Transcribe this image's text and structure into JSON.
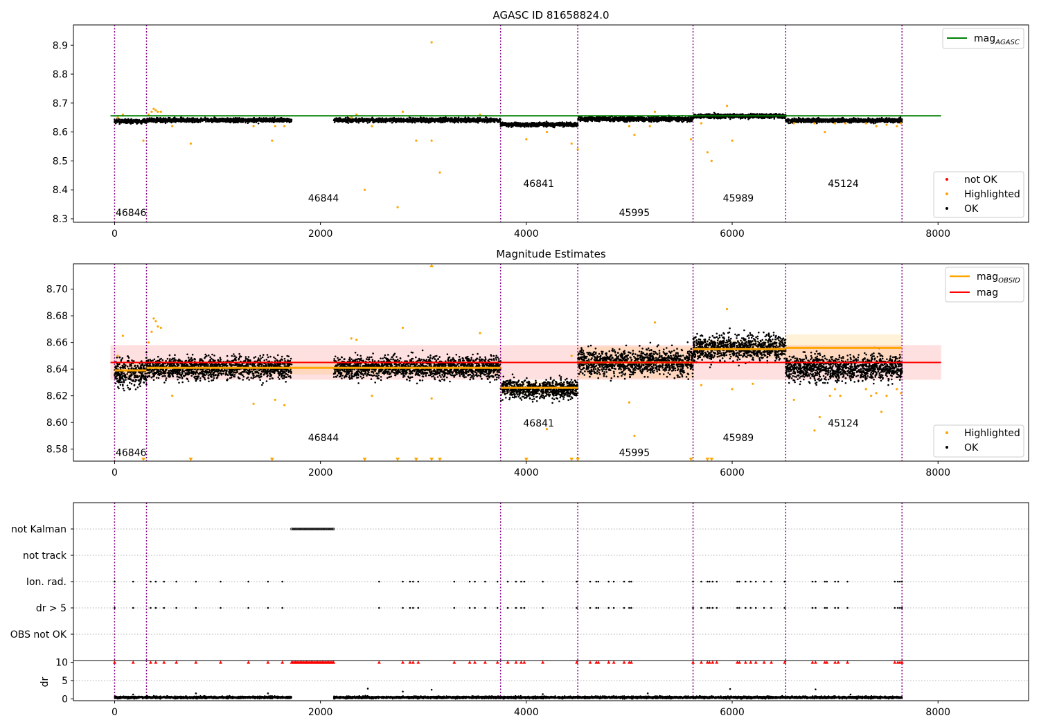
{
  "chart_data": [
    {
      "type": "scatter",
      "title": "AGASC ID 81658824.0",
      "xlim": [
        -400,
        8880
      ],
      "ylim": [
        8.288,
        8.97
      ],
      "xticks": [
        0,
        2000,
        4000,
        6000,
        8000
      ],
      "yticks": [
        8.3,
        8.4,
        8.5,
        8.6,
        8.7,
        8.8,
        8.9
      ],
      "grid": false,
      "obs_boundaries": [
        0,
        310,
        3750,
        4500,
        5620,
        6520,
        7650
      ],
      "obs_labels": [
        {
          "text": "46846",
          "x": 10,
          "y": 8.31
        },
        {
          "text": "46844",
          "x": 1880,
          "y": 8.36
        },
        {
          "text": "46841",
          "x": 3970,
          "y": 8.41
        },
        {
          "text": "45995",
          "x": 4900,
          "y": 8.31
        },
        {
          "text": "45989",
          "x": 5910,
          "y": 8.36
        },
        {
          "text": "45124",
          "x": 6930,
          "y": 8.41
        }
      ],
      "mag_agasc": {
        "name": "mag",
        "sub": "AGASC",
        "value": 8.656,
        "xrange": [
          -40,
          8030
        ],
        "color": "#008000"
      },
      "legend_upper": {
        "placement": "upper right",
        "entries": [
          {
            "label": "mag",
            "sub": "AGASC",
            "color": "#008000"
          }
        ]
      },
      "legend_lower": {
        "placement": "lower right",
        "entries": [
          {
            "label": "not OK",
            "color": "#ff0000"
          },
          {
            "label": "Highlighted",
            "color": "#ffa500"
          },
          {
            "label": "OK",
            "color": "#000000"
          }
        ]
      },
      "ok_segments": [
        {
          "x": [
            0,
            310
          ],
          "mean": 8.637,
          "sd": 0.006
        },
        {
          "x": [
            310,
            1720
          ],
          "mean": 8.641,
          "sd": 0.006
        },
        {
          "x": [
            2130,
            3750
          ],
          "mean": 8.641,
          "sd": 0.006
        },
        {
          "x": [
            3750,
            4500
          ],
          "mean": 8.626,
          "sd": 0.006
        },
        {
          "x": [
            4500,
            5620
          ],
          "mean": 8.645,
          "sd": 0.007
        },
        {
          "x": [
            5620,
            6520
          ],
          "mean": 8.655,
          "sd": 0.006
        },
        {
          "x": [
            6520,
            7650
          ],
          "mean": 8.64,
          "sd": 0.006
        }
      ],
      "highlighted": [
        [
          30,
          8.65
        ],
        [
          80,
          8.66
        ],
        [
          280,
          8.57
        ],
        [
          330,
          8.66
        ],
        [
          360,
          8.67
        ],
        [
          380,
          8.68
        ],
        [
          400,
          8.675
        ],
        [
          420,
          8.67
        ],
        [
          450,
          8.67
        ],
        [
          560,
          8.62
        ],
        [
          740,
          8.56
        ],
        [
          1350,
          8.62
        ],
        [
          1530,
          8.57
        ],
        [
          1560,
          8.62
        ],
        [
          1650,
          8.62
        ],
        [
          2300,
          8.65
        ],
        [
          2350,
          8.66
        ],
        [
          2430,
          8.4
        ],
        [
          2500,
          8.62
        ],
        [
          2750,
          8.34
        ],
        [
          2800,
          8.67
        ],
        [
          2930,
          8.57
        ],
        [
          3080,
          8.57
        ],
        [
          3080,
          8.91
        ],
        [
          3160,
          8.46
        ],
        [
          3550,
          8.66
        ],
        [
          4000,
          8.575
        ],
        [
          4200,
          8.6
        ],
        [
          4440,
          8.56
        ],
        [
          4500,
          8.54
        ],
        [
          5000,
          8.62
        ],
        [
          5050,
          8.59
        ],
        [
          5200,
          8.62
        ],
        [
          5250,
          8.67
        ],
        [
          5600,
          8.575
        ],
        [
          5700,
          8.63
        ],
        [
          5760,
          8.53
        ],
        [
          5800,
          8.5
        ],
        [
          5950,
          8.69
        ],
        [
          6000,
          8.57
        ],
        [
          6600,
          8.63
        ],
        [
          6800,
          8.63
        ],
        [
          6900,
          8.6
        ],
        [
          7000,
          8.63
        ],
        [
          7100,
          8.63
        ],
        [
          7300,
          8.63
        ],
        [
          7400,
          8.62
        ],
        [
          7500,
          8.625
        ],
        [
          7600,
          8.62
        ],
        [
          7640,
          8.63
        ]
      ]
    },
    {
      "type": "scatter",
      "title": "Magnitude Estimates",
      "xlim": [
        -400,
        8880
      ],
      "ylim": [
        8.571,
        8.719
      ],
      "xticks": [
        0,
        2000,
        4000,
        6000,
        8000
      ],
      "yticks": [
        8.58,
        8.6,
        8.62,
        8.64,
        8.66,
        8.68,
        8.7
      ],
      "grid": false,
      "obs_boundaries": [
        0,
        310,
        3750,
        4500,
        5620,
        6520,
        7650
      ],
      "obs_labels": [
        {
          "text": "46846",
          "x": 10,
          "y": 8.575
        },
        {
          "text": "46844",
          "x": 1880,
          "y": 8.586
        },
        {
          "text": "46841",
          "x": 3970,
          "y": 8.597
        },
        {
          "text": "45995",
          "x": 4900,
          "y": 8.575
        },
        {
          "text": "45989",
          "x": 5910,
          "y": 8.586
        },
        {
          "text": "45124",
          "x": 6930,
          "y": 8.597
        }
      ],
      "mag": {
        "name": "mag",
        "value": 8.645,
        "band": [
          8.632,
          8.658
        ],
        "xrange": [
          -40,
          8030
        ],
        "color": "#ff0000"
      },
      "mag_obsid": {
        "name": "mag",
        "sub": "OBSID",
        "color": "#ffa500",
        "segments": [
          {
            "x": [
              0,
              310
            ],
            "value": 8.639,
            "band": [
              8.634,
              8.644
            ]
          },
          {
            "x": [
              310,
              3750
            ],
            "value": 8.641,
            "band": [
              8.636,
              8.646
            ]
          },
          {
            "x": [
              3750,
              4500
            ],
            "value": 8.626,
            "band": [
              8.621,
              8.631
            ]
          },
          {
            "x": [
              4500,
              5620
            ],
            "value": 8.645,
            "band": [
              8.633,
              8.657
            ]
          },
          {
            "x": [
              5620,
              6520
            ],
            "value": 8.655,
            "band": [
              8.648,
              8.662
            ]
          },
          {
            "x": [
              6520,
              7650
            ],
            "value": 8.656,
            "band": [
              8.646,
              8.666
            ]
          }
        ]
      },
      "legend_upper": {
        "placement": "upper right",
        "entries": [
          {
            "label": "mag",
            "sub": "OBSID",
            "color": "#ffa500"
          },
          {
            "label": "mag",
            "color": "#ff0000"
          }
        ]
      },
      "legend_lower": {
        "placement": "lower right",
        "entries": [
          {
            "label": "Highlighted",
            "color": "#ffa500"
          },
          {
            "label": "OK",
            "color": "#000000"
          }
        ]
      },
      "ok_segments": [
        {
          "x": [
            0,
            310
          ],
          "mean": 8.637,
          "sd": 0.009
        },
        {
          "x": [
            310,
            1720
          ],
          "mean": 8.641,
          "sd": 0.007
        },
        {
          "x": [
            2130,
            3750
          ],
          "mean": 8.641,
          "sd": 0.007
        },
        {
          "x": [
            3750,
            4500
          ],
          "mean": 8.625,
          "sd": 0.006
        },
        {
          "x": [
            4500,
            5620
          ],
          "mean": 8.645,
          "sd": 0.008
        },
        {
          "x": [
            5620,
            6520
          ],
          "mean": 8.656,
          "sd": 0.008
        },
        {
          "x": [
            6520,
            7650
          ],
          "mean": 8.641,
          "sd": 0.008
        }
      ],
      "highlighted": [
        [
          30,
          8.65
        ],
        [
          80,
          8.665
        ],
        [
          330,
          8.66
        ],
        [
          360,
          8.668
        ],
        [
          380,
          8.678
        ],
        [
          400,
          8.676
        ],
        [
          420,
          8.672
        ],
        [
          450,
          8.671
        ],
        [
          560,
          8.62
        ],
        [
          1350,
          8.614
        ],
        [
          1560,
          8.617
        ],
        [
          1650,
          8.613
        ],
        [
          2300,
          8.663
        ],
        [
          2350,
          8.662
        ],
        [
          2500,
          8.62
        ],
        [
          2800,
          8.671
        ],
        [
          3550,
          8.667
        ],
        [
          3080,
          8.618
        ],
        [
          4200,
          8.595
        ],
        [
          4440,
          8.65
        ],
        [
          5000,
          8.615
        ],
        [
          5050,
          8.59
        ],
        [
          5250,
          8.675
        ],
        [
          5700,
          8.628
        ],
        [
          5950,
          8.685
        ],
        [
          6000,
          8.625
        ],
        [
          6200,
          8.629
        ],
        [
          6600,
          8.617
        ],
        [
          6800,
          8.594
        ],
        [
          6850,
          8.604
        ],
        [
          6950,
          8.62
        ],
        [
          7000,
          8.625
        ],
        [
          7050,
          8.62
        ],
        [
          7300,
          8.625
        ],
        [
          7350,
          8.62
        ],
        [
          7400,
          8.622
        ],
        [
          7450,
          8.608
        ],
        [
          7500,
          8.62
        ],
        [
          7600,
          8.625
        ],
        [
          7640,
          8.622
        ]
      ],
      "offscale_low": [
        280,
        740,
        1530,
        2430,
        2750,
        2930,
        3080,
        3160,
        4000,
        4440,
        4500,
        5600,
        5760,
        5800
      ],
      "offscale_high": [
        3080
      ]
    },
    {
      "type": "scatter",
      "xlim": [
        -400,
        8880
      ],
      "yticks_categories": [
        "not Kalman",
        "not track",
        "Ion. rad.",
        "dr > 5",
        "OBS not OK"
      ],
      "grid": "horizontal dotted",
      "obs_boundaries": [
        0,
        310,
        3750,
        4500,
        5620,
        6520,
        7650
      ],
      "not_kalman_range": [
        1720,
        2130
      ],
      "ion_rad_x": [
        0,
        180,
        350,
        400,
        480,
        600,
        790,
        1030,
        1300,
        1490,
        1630,
        2570,
        2800,
        2870,
        2900,
        2950,
        3300,
        3450,
        3500,
        3600,
        3720,
        3820,
        3900,
        3950,
        3980,
        4160,
        4490,
        4620,
        4680,
        4700,
        4800,
        4850,
        4950,
        5000,
        5020,
        5620,
        5700,
        5760,
        5780,
        5810,
        5850,
        6050,
        6070,
        6130,
        6180,
        6230,
        6310,
        6380,
        6510,
        6780,
        6810,
        6900,
        6920,
        7000,
        7030,
        7120,
        7580,
        7610,
        7630,
        7650
      ],
      "dr_gt5_x": [
        0,
        180,
        350,
        400,
        480,
        600,
        790,
        1030,
        1300,
        1490,
        1630,
        2570,
        2800,
        2870,
        2900,
        2950,
        3300,
        3450,
        3500,
        3600,
        3720,
        3820,
        3900,
        3950,
        3980,
        4160,
        4490,
        4620,
        4680,
        4700,
        4800,
        4850,
        4950,
        5000,
        5020,
        5620,
        5700,
        5760,
        5780,
        5810,
        5850,
        6050,
        6070,
        6130,
        6180,
        6230,
        6310,
        6380,
        6510,
        6780,
        6810,
        6900,
        6920,
        7000,
        7030,
        7120,
        7580,
        7610,
        7630,
        7650
      ]
    },
    {
      "type": "scatter",
      "xlim": [
        -400,
        8880
      ],
      "ylim": [
        -0.5,
        10.5
      ],
      "ylabel": "dr",
      "xticks": [
        0,
        2000,
        4000,
        6000,
        8000
      ],
      "yticks": [
        0,
        5,
        10
      ],
      "grid": "horizontal dotted",
      "obs_boundaries": [
        0,
        310,
        3750,
        4500,
        5620,
        6520,
        7650
      ],
      "dr_ok_segments": [
        {
          "x": [
            0,
            1720
          ],
          "mean": 0.4,
          "sd": 0.25
        },
        {
          "x": [
            2130,
            7650
          ],
          "mean": 0.4,
          "sd": 0.25
        }
      ],
      "dr_spikes": [
        [
          180,
          1.2
        ],
        [
          790,
          1.5
        ],
        [
          1490,
          1.5
        ],
        [
          2460,
          2.8
        ],
        [
          2800,
          2.0
        ],
        [
          3080,
          2.5
        ],
        [
          4160,
          1.3
        ],
        [
          5180,
          1.5
        ],
        [
          5980,
          2.7
        ],
        [
          6810,
          2.6
        ],
        [
          7150,
          1.2
        ]
      ],
      "dr_capped_x": [
        0,
        180,
        350,
        400,
        480,
        600,
        790,
        1030,
        1300,
        1490,
        1630,
        2570,
        2800,
        2870,
        2900,
        2950,
        3300,
        3450,
        3500,
        3600,
        3720,
        3820,
        3900,
        3950,
        3980,
        4160,
        4490,
        4620,
        4680,
        4700,
        4800,
        4850,
        4950,
        5000,
        5020,
        5620,
        5700,
        5760,
        5780,
        5810,
        5850,
        6050,
        6070,
        6130,
        6180,
        6230,
        6310,
        6380,
        6510,
        6780,
        6810,
        6900,
        6920,
        7000,
        7030,
        7120,
        7580,
        7610,
        7630,
        7650
      ],
      "dr_capped_value": 10
    }
  ]
}
